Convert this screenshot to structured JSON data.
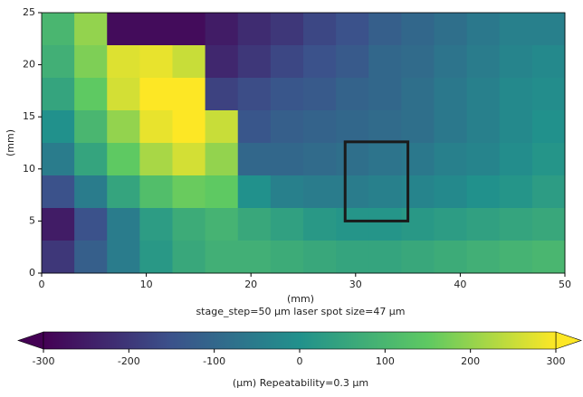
{
  "chart_data": {
    "type": "heatmap",
    "xlabel": "(mm)",
    "ylabel": "(mm)",
    "subtitle": "stage_step=50 μm laser spot size=47 μm",
    "xlim": [
      0,
      50
    ],
    "ylim": [
      0,
      25
    ],
    "xticks": [
      0,
      10,
      20,
      30,
      40,
      50
    ],
    "yticks": [
      0,
      5,
      10,
      15,
      20,
      25
    ],
    "z": [
      [
        100,
        200,
        -280,
        -280,
        -280,
        -250,
        -220,
        -200,
        -170,
        -150,
        -120,
        -100,
        -80,
        -60,
        -40,
        -40
      ],
      [
        80,
        180,
        270,
        280,
        250,
        -230,
        -200,
        -170,
        -150,
        -130,
        -100,
        -90,
        -70,
        -50,
        -30,
        -20
      ],
      [
        50,
        150,
        260,
        300,
        300,
        -180,
        -160,
        -140,
        -130,
        -110,
        -100,
        -80,
        -60,
        -40,
        -20,
        -10
      ],
      [
        0,
        100,
        200,
        280,
        300,
        250,
        -140,
        -120,
        -110,
        -100,
        -90,
        -80,
        -60,
        -40,
        -20,
        0
      ],
      [
        -50,
        50,
        150,
        220,
        260,
        200,
        -100,
        -100,
        -90,
        -80,
        -70,
        -60,
        -40,
        -30,
        -10,
        10
      ],
      [
        -150,
        -50,
        50,
        120,
        160,
        150,
        0,
        -40,
        -50,
        -50,
        -40,
        -30,
        -20,
        0,
        10,
        30
      ],
      [
        -250,
        -150,
        -50,
        30,
        70,
        90,
        60,
        40,
        20,
        10,
        10,
        20,
        30,
        40,
        50,
        60
      ],
      [
        -200,
        -120,
        -50,
        20,
        60,
        80,
        80,
        70,
        60,
        50,
        50,
        60,
        70,
        80,
        90,
        100
      ]
    ],
    "box": {
      "xlim": [
        29,
        35
      ],
      "ylim": [
        5,
        12.6
      ],
      "color": "#1a1a1a"
    },
    "colormap": [
      "#440154",
      "#3b528b",
      "#21918c",
      "#5ec962",
      "#fde725"
    ],
    "colorbar": {
      "lim": [
        -300,
        300
      ],
      "ticks": [
        -300,
        -200,
        -100,
        0,
        100,
        200,
        300
      ],
      "label": "(μm) Repeatability=0.3 μm"
    }
  }
}
